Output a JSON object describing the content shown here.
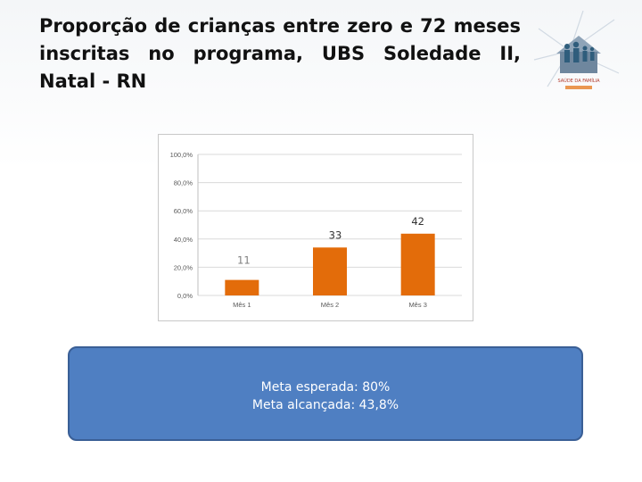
{
  "slide": {
    "title": "Proporção de crianças entre zero e 72 meses inscritas no programa, UBS Soledade II, Natal - RN"
  },
  "logo": {
    "icon": "family-logo-icon",
    "text": "SAÚDE DA FAMÍLIA"
  },
  "info_box": {
    "line1": "Meta esperada: 80%",
    "line2": "Meta alcançada: 43,8%"
  },
  "colors": {
    "bar": "#e36c0a",
    "info_box": "#4f7fc2",
    "grid": "#d9d9d9"
  },
  "chart_data": {
    "type": "bar",
    "categories": [
      "Mês 1",
      "Mês 2",
      "Mês 3"
    ],
    "values": [
      11,
      33,
      42
    ],
    "data_labels": [
      "11",
      "33",
      "42"
    ],
    "series_values_percent": [
      11.0,
      34.0,
      43.8
    ],
    "y_ticks": [
      "0,0%",
      "20,0%",
      "40,0%",
      "60,0%",
      "80,0%",
      "100,0%"
    ],
    "ylim": [
      0,
      100
    ],
    "grid": true,
    "legend": "none",
    "title": "",
    "xlabel": "",
    "ylabel": ""
  }
}
